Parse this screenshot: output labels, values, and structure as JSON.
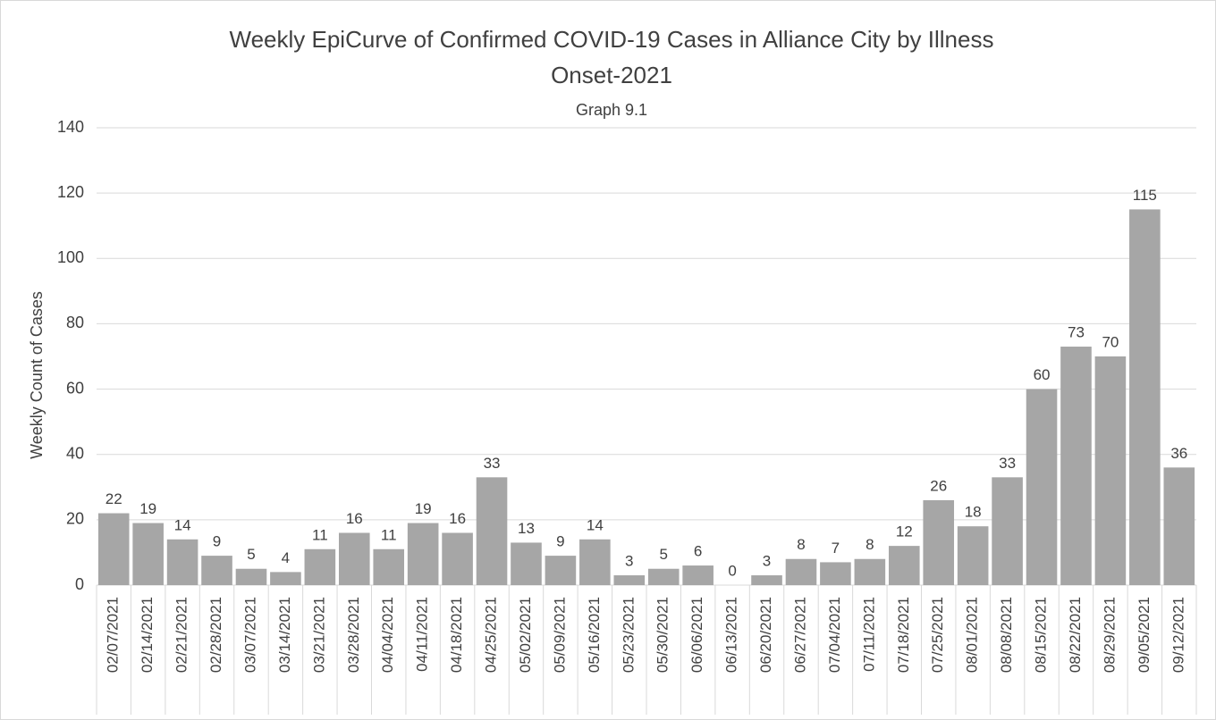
{
  "chart_data": {
    "type": "bar",
    "title": [
      "Weekly EpiCurve of Confirmed COVID-19 Cases in Alliance City by Illness",
      "Onset-2021"
    ],
    "subtitle": "Graph 9.1",
    "y_label": "Weekly Count of Cases",
    "categories": [
      "02/07/2021",
      "02/14/2021",
      "02/21/2021",
      "02/28/2021",
      "03/07/2021",
      "03/14/2021",
      "03/21/2021",
      "03/28/2021",
      "04/04/2021",
      "04/11/2021",
      "04/18/2021",
      "04/25/2021",
      "05/02/2021",
      "05/09/2021",
      "05/16/2021",
      "05/23/2021",
      "05/30/2021",
      "06/06/2021",
      "06/13/2021",
      "06/20/2021",
      "06/27/2021",
      "07/04/2021",
      "07/11/2021",
      "07/18/2021",
      "07/25/2021",
      "08/01/2021",
      "08/08/2021",
      "08/15/2021",
      "08/22/2021",
      "08/29/2021",
      "09/05/2021",
      "09/12/2021"
    ],
    "values": [
      22,
      19,
      14,
      9,
      5,
      4,
      11,
      16,
      11,
      19,
      16,
      33,
      13,
      9,
      14,
      3,
      5,
      6,
      0,
      3,
      8,
      7,
      8,
      12,
      26,
      18,
      33,
      60,
      73,
      70,
      115,
      36
    ],
    "color": "#a6a6a6",
    "ylim": [
      0,
      140
    ],
    "yticks": [
      0,
      20,
      40,
      60,
      80,
      100,
      120,
      140
    ],
    "grid": true
  }
}
